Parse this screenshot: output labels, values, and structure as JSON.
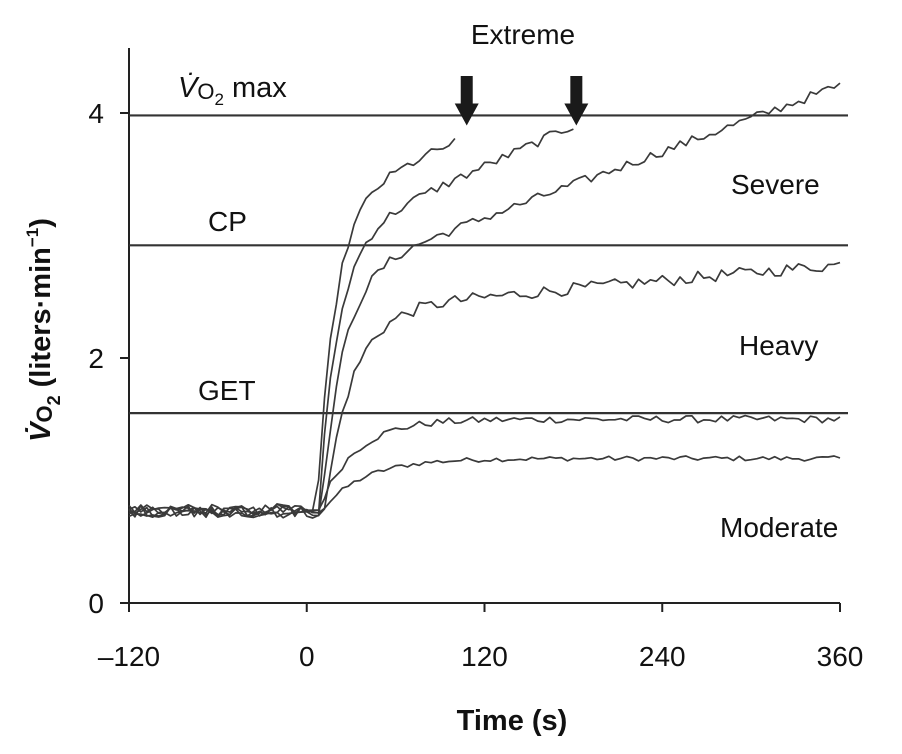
{
  "chart_data": {
    "type": "line",
    "xlabel": "Time (s)",
    "ylabel_main": "V̇",
    "ylabel_sub": "O",
    "ylabel_subscript": "2",
    "ylabel_units": " (liters·min",
    "ylabel_units_sup": "−1",
    "ylabel_close": ")",
    "xlim": [
      -120,
      360
    ],
    "ylim": [
      0,
      4.5
    ],
    "x_ticks": [
      -120,
      0,
      120,
      240,
      360
    ],
    "x_tick_labels": [
      "–120",
      "0",
      "120",
      "240",
      "360"
    ],
    "y_ticks": [
      0,
      2,
      4
    ],
    "y_tick_labels": [
      "0",
      "2",
      "4"
    ],
    "reference_lines": [
      {
        "name": "vo2max",
        "label_main": "V̇",
        "label_sub": "O",
        "label_subscript": "2",
        "label_tail": " max",
        "y": 3.98
      },
      {
        "name": "cp",
        "label": "CP",
        "y": 2.92
      },
      {
        "name": "get",
        "label": "GET",
        "y": 1.55
      }
    ],
    "domain_labels": [
      {
        "name": "severe",
        "label": "Severe",
        "x": 315,
        "y": 3.42
      },
      {
        "name": "heavy",
        "label": "Heavy",
        "x": 315,
        "y": 2.09
      },
      {
        "name": "moderate",
        "label": "Moderate",
        "x": 315,
        "y": 0.6
      }
    ],
    "annotation": {
      "label": "Extreme",
      "arrows_x": [
        108,
        182
      ],
      "arrow_top_y": 4.4,
      "arrow_tip_y": 3.98
    },
    "series": [
      {
        "name": "moderate-1",
        "t_end": 360,
        "base": 0.75,
        "steady": 1.18,
        "tau": 28,
        "delay": 10,
        "drift": 0.0,
        "noise": 0.02
      },
      {
        "name": "moderate-2",
        "t_end": 360,
        "base": 0.76,
        "steady": 1.5,
        "tau": 24,
        "delay": 8,
        "drift": 0.0,
        "noise": 0.03
      },
      {
        "name": "heavy",
        "t_end": 360,
        "base": 0.74,
        "steady": 2.38,
        "tau": 18,
        "delay": 12,
        "drift": 0.0011,
        "noise": 0.05
      },
      {
        "name": "severe",
        "t_end": 360,
        "base": 0.75,
        "steady": 2.65,
        "tau": 14,
        "delay": 10,
        "drift": 0.0045,
        "noise": 0.04
      },
      {
        "name": "extreme-1",
        "t_end": 182,
        "base": 0.75,
        "steady": 2.95,
        "tau": 13,
        "delay": 8,
        "drift": 0.0055,
        "noise": 0.04
      },
      {
        "name": "extreme-2",
        "t_end": 102,
        "base": 0.76,
        "steady": 3.25,
        "tau": 12,
        "delay": 7,
        "drift": 0.0055,
        "noise": 0.04
      }
    ]
  }
}
